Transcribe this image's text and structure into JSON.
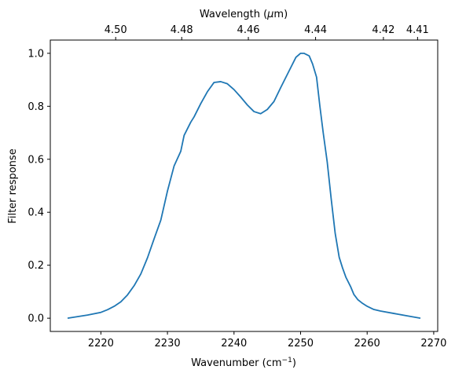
{
  "chart_data": {
    "type": "line",
    "title": "",
    "xlabel": "Wavenumber (cm⁻¹)",
    "ylabel": "Filter response",
    "top_xlabel": "Wavelength (μm)",
    "xlim": [
      2212.4,
      2270.6
    ],
    "ylim": [
      -0.05,
      1.05
    ],
    "x_ticks": [
      2220,
      2230,
      2240,
      2250,
      2260,
      2270
    ],
    "x_tick_labels": [
      "2220",
      "2230",
      "2240",
      "2250",
      "2260",
      "2270"
    ],
    "y_ticks": [
      0.0,
      0.2,
      0.4,
      0.6,
      0.8,
      1.0
    ],
    "y_tick_labels": [
      "0.0",
      "0.2",
      "0.4",
      "0.6",
      "0.8",
      "1.0"
    ],
    "top_ticks": [
      4.5,
      4.48,
      4.46,
      4.44,
      4.42,
      4.41
    ],
    "top_tick_labels": [
      "4.50",
      "4.48",
      "4.46",
      "4.44",
      "4.42",
      "4.41"
    ],
    "grid": false,
    "line_color": "#1f77b4",
    "series": [
      {
        "x": [
          2215.0,
          2218.0,
          2220.0,
          2221.0,
          2222.0,
          2223.0,
          2224.0,
          2225.0,
          2226.0,
          2227.0,
          2228.0,
          2229.0,
          2230.0,
          2231.0,
          2232.0,
          2232.5,
          2233.5,
          2234.0,
          2235.0,
          2236.0,
          2237.0,
          2238.0,
          2239.0,
          2240.0,
          2241.0,
          2242.0,
          2243.0,
          2244.0,
          2245.0,
          2246.0,
          2247.0,
          2248.0,
          2248.6,
          2249.3,
          2250.0,
          2250.5,
          2251.3,
          2251.8,
          2252.4,
          2252.9,
          2253.4,
          2254.0,
          2254.6,
          2255.2,
          2255.8,
          2256.3,
          2256.8,
          2257.5,
          2258.0,
          2258.6,
          2259.2,
          2260.0,
          2261.0,
          2262.0,
          2264.0,
          2266.0,
          2268.0
        ],
        "y": [
          0.0,
          0.012,
          0.022,
          0.032,
          0.045,
          0.062,
          0.088,
          0.123,
          0.167,
          0.228,
          0.3,
          0.37,
          0.48,
          0.575,
          0.63,
          0.69,
          0.74,
          0.76,
          0.81,
          0.855,
          0.89,
          0.893,
          0.885,
          0.863,
          0.835,
          0.805,
          0.78,
          0.772,
          0.788,
          0.818,
          0.87,
          0.92,
          0.95,
          0.985,
          1.0,
          1.0,
          0.99,
          0.96,
          0.91,
          0.8,
          0.7,
          0.59,
          0.45,
          0.32,
          0.23,
          0.19,
          0.155,
          0.12,
          0.09,
          0.07,
          0.058,
          0.045,
          0.033,
          0.027,
          0.018,
          0.009,
          0.0
        ]
      }
    ]
  }
}
